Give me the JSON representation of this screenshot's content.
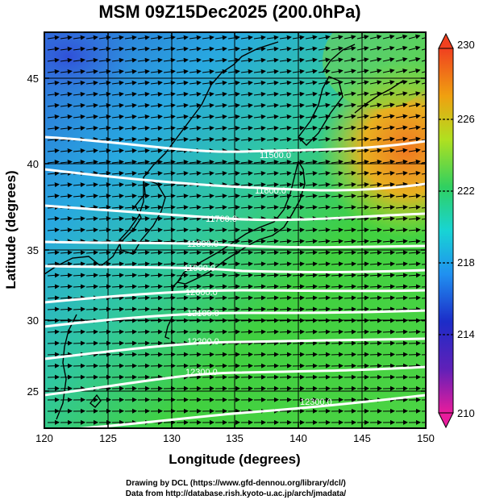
{
  "title": "MSM 09Z15Dec2025 (200.0hPa)",
  "map": {
    "xlabel": "Longitude (degrees)",
    "ylabel": "Latitude  (degrees)",
    "x_ticks": [
      "120",
      "125",
      "130",
      "135",
      "140",
      "145",
      "150"
    ],
    "y_ticks": [
      "25",
      "30",
      "35",
      "40",
      "45"
    ],
    "lon_range": [
      120,
      150
    ],
    "lat_range": [
      22.4,
      47.6
    ],
    "contours": [
      {
        "label": "11500.0"
      },
      {
        "label": "11600.0"
      },
      {
        "label": "11700.0"
      },
      {
        "label": "11800.0"
      },
      {
        "label": "11900.0"
      },
      {
        "label": "12000.0"
      },
      {
        "label": "12100.0"
      },
      {
        "label": "12200.0"
      },
      {
        "label": "12300.0"
      },
      {
        "label": "12300.0"
      }
    ],
    "field_colors": {
      "cold": "#3a78e0",
      "mid": "#20c0c8",
      "warm": "#40d040",
      "hot": "#f08020"
    }
  },
  "colorbar": {
    "ticks": [
      "230",
      "226",
      "222",
      "218",
      "214",
      "210"
    ],
    "range": [
      210,
      230
    ],
    "colors": [
      "#e81c9c",
      "#1c2cc8",
      "#2090f0",
      "#18d4d4",
      "#30d060",
      "#b0e020",
      "#f0a010",
      "#f04020"
    ]
  },
  "credits": {
    "line1": "Drawing by DCL (https://www.gfd-dennou.org/library/dcl/)",
    "line2": "Data from http://database.rish.kyoto-u.ac.jp/arch/jmadata/"
  }
}
